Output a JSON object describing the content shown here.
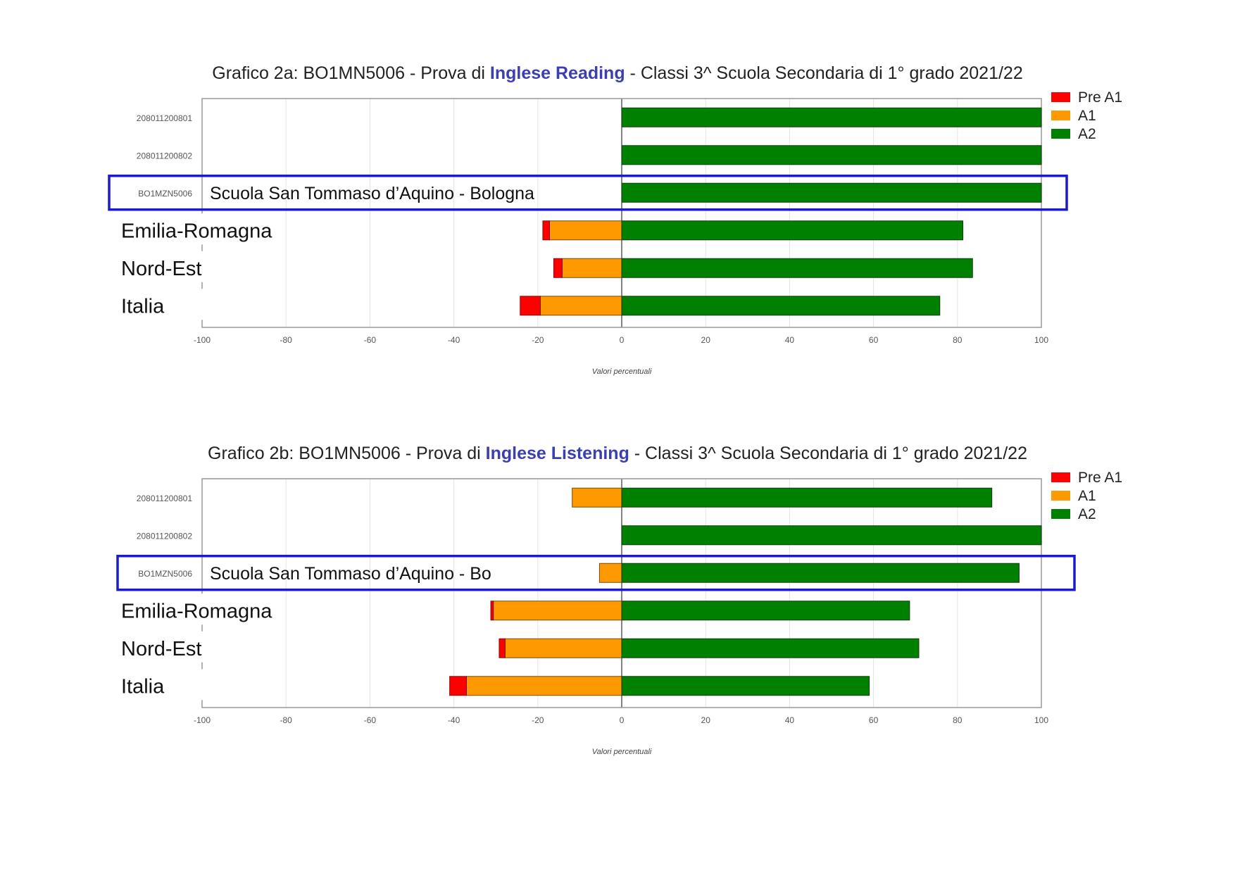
{
  "chart_data": [
    {
      "type": "bar",
      "orientation": "horizontal-diverging",
      "title_parts": {
        "prefix": "Grafico 2a: BO1MN5006 - Prova di ",
        "highlight": "Inglese Reading",
        "suffix": " - Classi 3^ Scuola Secondaria di 1° grado 2021/22"
      },
      "xlabel": "Valori percentuali",
      "xlim": [
        -100,
        100
      ],
      "xticks": [
        -100,
        -80,
        -60,
        -40,
        -20,
        0,
        20,
        40,
        60,
        80,
        100
      ],
      "legend": [
        "Pre A1",
        "A1",
        "A2"
      ],
      "legend_position": "top-right",
      "colors": {
        "Pre A1": "#ff0000",
        "A1": "#ff9900",
        "A2": "#008000"
      },
      "grid": true,
      "categories": [
        {
          "label": "208011200801",
          "style": "code"
        },
        {
          "label": "208011200802",
          "style": "code"
        },
        {
          "label": "BO1MZN5006",
          "style": "code",
          "annotation": "Scuola San Tommaso d’Aquino - Bologna",
          "highlighted": true
        },
        {
          "label": "Emilia-Romagna",
          "style": "big"
        },
        {
          "label": "Nord-Est",
          "style": "big"
        },
        {
          "label": "Italia",
          "style": "big"
        }
      ],
      "series": [
        {
          "name": "Pre A1",
          "values": [
            0,
            0,
            0,
            -1.6,
            -2.0,
            -4.8
          ]
        },
        {
          "name": "A1",
          "values": [
            0,
            0,
            0,
            -17.2,
            -14.2,
            -19.4
          ]
        },
        {
          "name": "A2",
          "values": [
            100,
            100,
            100,
            81.3,
            83.6,
            75.8
          ]
        }
      ]
    },
    {
      "type": "bar",
      "orientation": "horizontal-diverging",
      "title_parts": {
        "prefix": "Grafico 2b: BO1MN5006 - Prova di ",
        "highlight": "Inglese Listening",
        "suffix": " - Classi 3^ Scuola Secondaria di 1° grado 2021/22"
      },
      "xlabel": "Valori percentuali",
      "xlim": [
        -100,
        100
      ],
      "xticks": [
        -100,
        -80,
        -60,
        -40,
        -20,
        0,
        20,
        40,
        60,
        80,
        100
      ],
      "legend": [
        "Pre A1",
        "A1",
        "A2"
      ],
      "legend_position": "top-right",
      "colors": {
        "Pre A1": "#ff0000",
        "A1": "#ff9900",
        "A2": "#008000"
      },
      "grid": true,
      "categories": [
        {
          "label": "208011200801",
          "style": "code"
        },
        {
          "label": "208011200802",
          "style": "code"
        },
        {
          "label": "BO1MZN5006",
          "style": "code",
          "annotation": "Scuola San Tommaso d’Aquino - Bo",
          "highlighted": true
        },
        {
          "label": "Emilia-Romagna",
          "style": "big"
        },
        {
          "label": "Nord-Est",
          "style": "big"
        },
        {
          "label": "Italia",
          "style": "big"
        }
      ],
      "series": [
        {
          "name": "Pre A1",
          "values": [
            0,
            0,
            0,
            -0.6,
            -1.4,
            -4.0
          ]
        },
        {
          "name": "A1",
          "values": [
            -11.8,
            0,
            -5.3,
            -30.6,
            -27.8,
            -37.0
          ]
        },
        {
          "name": "A2",
          "values": [
            88.2,
            100,
            94.7,
            68.6,
            70.8,
            59.0
          ]
        }
      ]
    }
  ]
}
